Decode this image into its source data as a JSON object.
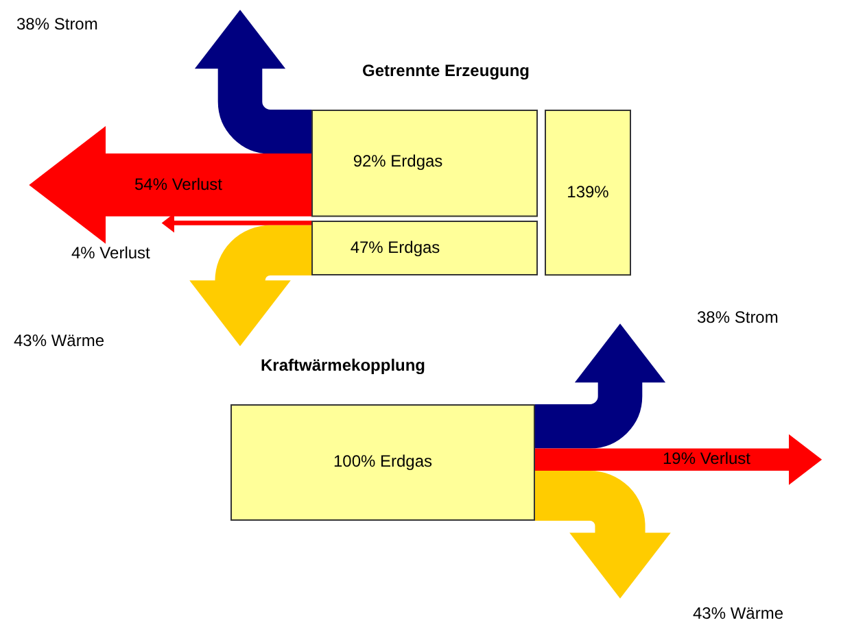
{
  "chart_data": [
    {
      "type": "other",
      "title": "Getrennte Erzeugung",
      "categories": [
        "Erdgas",
        "Erdgas",
        "Strom",
        "Verlust",
        "Verlust",
        "Wärme"
      ],
      "values": [
        92,
        47,
        38,
        54,
        4,
        43
      ],
      "value_labels": [
        "92%",
        "47%",
        "38%",
        "54%",
        "4%",
        "43%"
      ],
      "colors": [
        "#ffff99",
        "#ffff99",
        "#000080",
        "#ff0000",
        "#ff0000",
        "#ffcc00"
      ],
      "totals": [
        "139%"
      ]
    },
    {
      "type": "other",
      "title": "Kraftwärmekopplung",
      "categories": [
        "Erdgas",
        "Strom",
        "Verlust",
        "Wärme"
      ],
      "values": [
        100,
        38,
        19,
        43
      ],
      "value_labels": [
        "100%",
        "38%",
        "19%",
        "43%"
      ],
      "colors": [
        "#ffff99",
        "#000080",
        "#ff0000",
        "#ffcc00"
      ]
    }
  ]
}
